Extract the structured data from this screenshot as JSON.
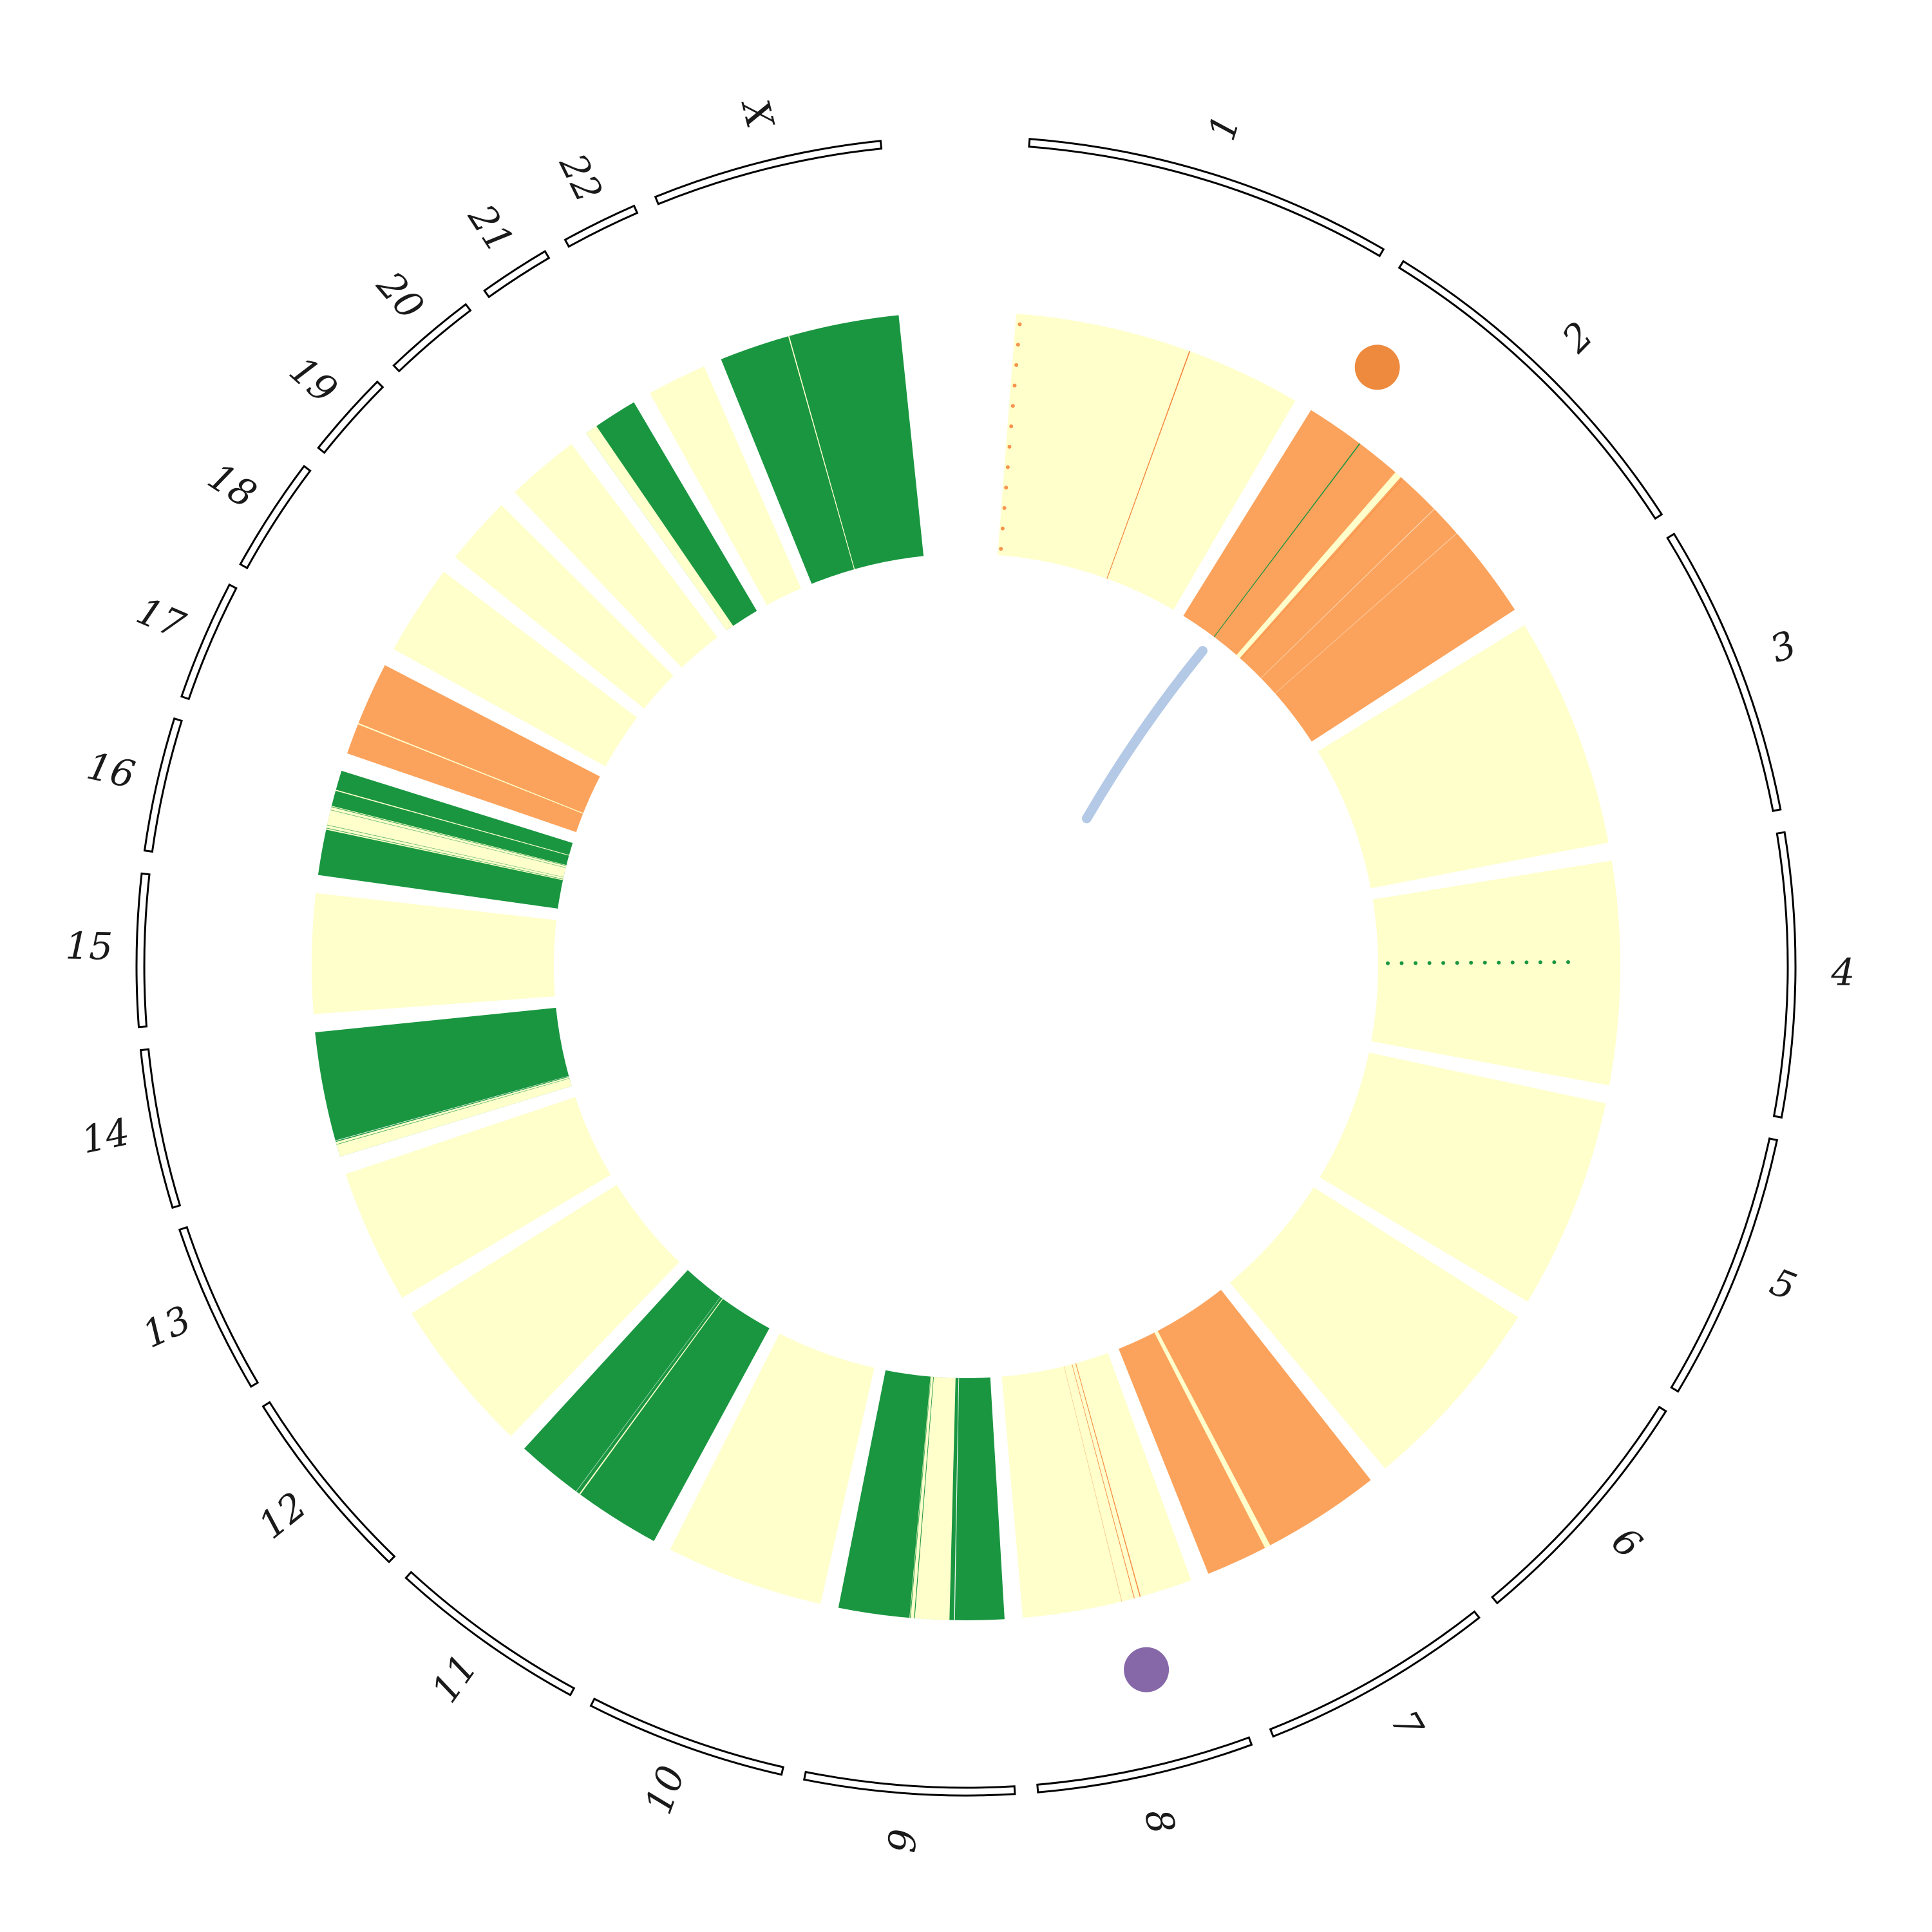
{
  "figure": {
    "type": "circos-genome-plot",
    "background": "#ffffff"
  },
  "palette": {
    "yellow": "#FFFFCC",
    "orange": "#FBA35C",
    "green": "#1A9641",
    "ideogram_stroke": "#000000",
    "ideogram_fill": "#FFFFFF",
    "label_color": "#1a1a1a",
    "link_blue": "#B3C9E6",
    "marker_orange": "#ED8A3D",
    "marker_purple": "#8668A9",
    "hairline_orange": "#F4883F",
    "hairline_yellow": "#FFFFCC",
    "hairline_white": "#FFFFFF",
    "dot_green": "#1A9641"
  },
  "chart_data": {
    "type": "circos",
    "description": "Circular genome plot: outer ideogram arcs with chromosome labels 1-22 and X, an inner heatmap ring of colored wedges (pale yellow / orange / green) with thin variant bands, two scatter markers and one light-blue radial link",
    "legend_position": "none",
    "grid": false,
    "chromosomes": [
      {
        "name": "1",
        "start_deg": 4.4,
        "end_deg": 30.22,
        "color": "yellow",
        "features": [
          {
            "kind": "dotline",
            "at": 0.015,
            "color": "hairline_orange",
            "r_from": 650,
            "r_to": 1000,
            "count": 12,
            "size": 3,
            "opacity": 0.9
          },
          {
            "kind": "line",
            "at": 0.604,
            "color": "hairline_orange",
            "width_deg": 0.1,
            "opacity": 1
          }
        ]
      },
      {
        "name": "2",
        "start_deg": 31.82,
        "end_deg": 57.01,
        "color": "orange",
        "features": [
          {
            "kind": "line",
            "at": 0.206,
            "color": "dot_green",
            "width_deg": 0.1,
            "opacity": 1
          },
          {
            "kind": "band",
            "from": 0.365,
            "to": 0.39,
            "color": "hairline_yellow",
            "opacity": 1
          },
          {
            "kind": "line",
            "at": 0.398,
            "color": "hairline_orange",
            "width_deg": 0.06,
            "opacity": 0.8
          },
          {
            "kind": "line",
            "at": 0.551,
            "color": "hairline_white",
            "width_deg": 0.07,
            "opacity": 0.55
          },
          {
            "kind": "line",
            "at": 0.666,
            "color": "hairline_white",
            "width_deg": 0.07,
            "opacity": 0.45
          }
        ]
      },
      {
        "name": "3",
        "start_deg": 58.61,
        "end_deg": 79.12,
        "color": "yellow",
        "features": []
      },
      {
        "name": "4",
        "start_deg": 80.72,
        "end_deg": 100.52,
        "color": "yellow",
        "features": [
          {
            "kind": "dotline",
            "at": 0.45,
            "color": "dot_green",
            "r_from": 655,
            "r_to": 935,
            "count": 14,
            "size": 3,
            "opacity": 1
          }
        ]
      },
      {
        "name": "5",
        "start_deg": 102.12,
        "end_deg": 120.86,
        "color": "yellow",
        "features": []
      },
      {
        "name": "6",
        "start_deg": 122.46,
        "end_deg": 140.18,
        "color": "yellow",
        "features": []
      },
      {
        "name": "7",
        "start_deg": 141.78,
        "end_deg": 158.26,
        "color": "orange",
        "features": [
          {
            "kind": "band",
            "from": 0.638,
            "to": 0.669,
            "color": "hairline_yellow",
            "opacity": 1
          }
        ]
      },
      {
        "name": "8",
        "start_deg": 159.86,
        "end_deg": 175.02,
        "color": "yellow",
        "features": [
          {
            "kind": "line",
            "at": 0.31,
            "color": "hairline_orange",
            "width_deg": 0.09,
            "opacity": 0.95
          },
          {
            "kind": "line",
            "at": 0.345,
            "color": "hairline_orange",
            "width_deg": 0.07,
            "opacity": 0.9
          },
          {
            "kind": "line",
            "at": 0.42,
            "color": "hairline_orange",
            "width_deg": 0.05,
            "opacity": 0.55
          }
        ]
      },
      {
        "name": "9",
        "start_deg": 176.62,
        "end_deg": 191.25,
        "color": "green",
        "features": [
          {
            "kind": "line",
            "at": 0.3,
            "color": "hairline_white",
            "width_deg": 0.08,
            "opacity": 0.9
          },
          {
            "kind": "band",
            "from": 0.33,
            "to": 0.57,
            "color": "hairline_yellow",
            "opacity": 1
          },
          {
            "kind": "line",
            "at": 0.54,
            "color": "dot_green",
            "width_deg": 0.07,
            "opacity": 1
          },
          {
            "kind": "line",
            "at": 0.565,
            "color": "dot_green",
            "width_deg": 0.06,
            "opacity": 0.9
          }
        ]
      },
      {
        "name": "10",
        "start_deg": 192.85,
        "end_deg": 206.89,
        "color": "yellow",
        "features": []
      },
      {
        "name": "11",
        "start_deg": 208.49,
        "end_deg": 222.47,
        "color": "green",
        "features": [
          {
            "kind": "line",
            "at": 0.55,
            "color": "hairline_yellow",
            "width_deg": 0.12,
            "opacity": 1
          },
          {
            "kind": "line",
            "at": 0.578,
            "color": "hairline_white",
            "width_deg": 0.05,
            "opacity": 0.7
          }
        ]
      },
      {
        "name": "12",
        "start_deg": 224.07,
        "end_deg": 237.93,
        "color": "yellow",
        "features": []
      },
      {
        "name": "13",
        "start_deg": 239.53,
        "end_deg": 251.46,
        "color": "yellow",
        "features": []
      },
      {
        "name": "14",
        "start_deg": 253.06,
        "end_deg": 264.18,
        "color": "green",
        "features": [
          {
            "kind": "band",
            "from": 0.0,
            "to": 0.12,
            "color": "hairline_yellow",
            "opacity": 1
          },
          {
            "kind": "line",
            "at": 0.1,
            "color": "dot_green",
            "width_deg": 0.05,
            "opacity": 0.9
          },
          {
            "kind": "line",
            "at": 0.13,
            "color": "hairline_white",
            "width_deg": 0.06,
            "opacity": 0.85
          }
        ]
      },
      {
        "name": "15",
        "start_deg": 265.78,
        "end_deg": 276.4,
        "color": "yellow",
        "features": []
      },
      {
        "name": "16",
        "start_deg": 278.0,
        "end_deg": 287.36,
        "color": "green",
        "features": [
          {
            "kind": "band",
            "from": 0.43,
            "to": 0.66,
            "color": "hairline_yellow",
            "opacity": 1
          },
          {
            "kind": "line",
            "at": 0.445,
            "color": "dot_green",
            "width_deg": 0.06,
            "opacity": 0.85
          },
          {
            "kind": "line",
            "at": 0.475,
            "color": "dot_green",
            "width_deg": 0.05,
            "opacity": 0.7
          },
          {
            "kind": "line",
            "at": 0.62,
            "color": "dot_green",
            "width_deg": 0.05,
            "opacity": 0.7
          },
          {
            "kind": "line",
            "at": 0.65,
            "color": "dot_green",
            "width_deg": 0.06,
            "opacity": 0.85
          },
          {
            "kind": "line",
            "at": 0.81,
            "color": "hairline_yellow",
            "width_deg": 0.09,
            "opacity": 1
          }
        ]
      },
      {
        "name": "17",
        "start_deg": 288.96,
        "end_deg": 297.37,
        "color": "orange",
        "features": [
          {
            "kind": "line",
            "at": 0.33,
            "color": "hairline_yellow",
            "width_deg": 0.12,
            "opacity": 1
          }
        ]
      },
      {
        "name": "18",
        "start_deg": 298.97,
        "end_deg": 307.06,
        "color": "yellow",
        "features": []
      },
      {
        "name": "19",
        "start_deg": 308.66,
        "end_deg": 314.78,
        "color": "yellow",
        "features": []
      },
      {
        "name": "20",
        "start_deg": 316.38,
        "end_deg": 322.91,
        "color": "yellow",
        "features": []
      },
      {
        "name": "21",
        "start_deg": 324.51,
        "end_deg": 329.5,
        "color": "green",
        "features": [
          {
            "kind": "band",
            "from": 0.0,
            "to": 0.22,
            "color": "hairline_yellow",
            "opacity": 1
          }
        ]
      },
      {
        "name": "22",
        "start_deg": 331.1,
        "end_deg": 336.41,
        "color": "yellow",
        "features": []
      },
      {
        "name": "X",
        "start_deg": 338.01,
        "end_deg": 354.09,
        "color": "green",
        "features": [
          {
            "kind": "line",
            "at": 0.39,
            "color": "hairline_yellow",
            "width_deg": 0.1,
            "opacity": 1
          }
        ]
      }
    ],
    "scatter_points": [
      {
        "chromosome": "2",
        "position_frac": 0.106,
        "radius": 1128,
        "color": "marker_orange",
        "size": 35
      },
      {
        "chromosome": "8",
        "position_frac": 0.38,
        "radius": 1128,
        "color": "marker_purple",
        "size": 35
      }
    ],
    "links": [
      {
        "chromosome": "2",
        "from_frac": 0.202,
        "from_radius": 612,
        "to_frac": 0.297,
        "to_radius": 296,
        "color": "link_blue",
        "width": 15
      }
    ]
  }
}
